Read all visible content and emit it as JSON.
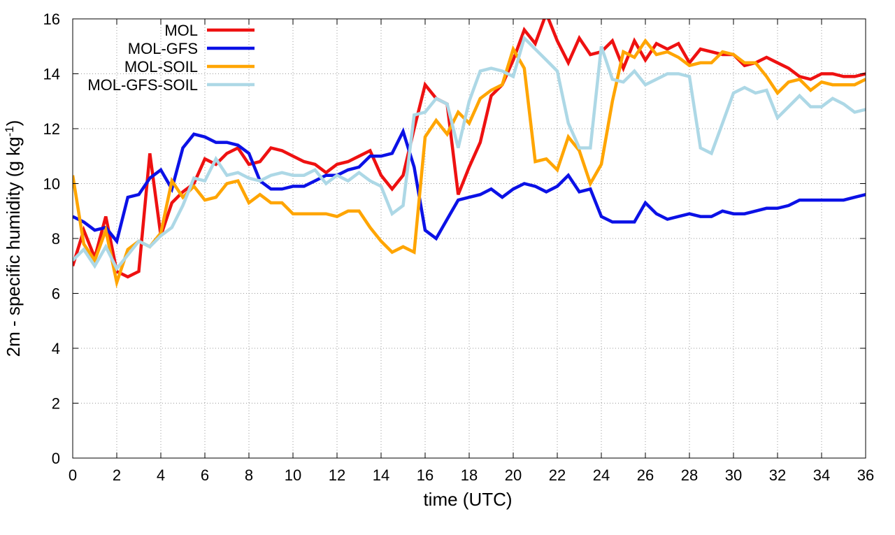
{
  "chart_data": {
    "type": "line",
    "xlabel": "time (UTC)",
    "ylabel": {
      "main": "2m - specific humidity (g kg",
      "sup": "-1",
      "close": ")"
    },
    "xlim": [
      0,
      36
    ],
    "ylim": [
      0,
      16
    ],
    "xticks": [
      0,
      2,
      4,
      6,
      8,
      10,
      12,
      14,
      16,
      18,
      20,
      22,
      24,
      26,
      28,
      30,
      32,
      34,
      36
    ],
    "yticks": [
      0,
      2,
      4,
      6,
      8,
      10,
      12,
      14,
      16
    ],
    "grid": true,
    "legend": "top-left",
    "x": [
      0,
      0.5,
      1,
      1.5,
      2,
      2.5,
      3,
      3.5,
      4,
      4.5,
      5,
      5.5,
      6,
      6.5,
      7,
      7.5,
      8,
      8.5,
      9,
      9.5,
      10,
      10.5,
      11,
      11.5,
      12,
      12.5,
      13,
      13.5,
      14,
      14.5,
      15,
      15.5,
      16,
      16.5,
      17,
      17.5,
      18,
      18.5,
      19,
      19.5,
      20,
      20.5,
      21,
      21.5,
      22,
      22.5,
      23,
      23.5,
      24,
      24.5,
      25,
      25.5,
      26,
      26.5,
      27,
      27.5,
      28,
      28.5,
      29,
      29.5,
      30,
      30.5,
      31,
      31.5,
      32,
      32.5,
      33,
      33.5,
      34,
      34.5,
      35,
      35.5,
      36
    ],
    "series": [
      {
        "name": "MOL",
        "color": "#ee1111",
        "values": [
          7.0,
          8.3,
          7.3,
          8.8,
          6.8,
          6.6,
          6.8,
          11.1,
          8.1,
          9.3,
          9.7,
          10.0,
          10.9,
          10.7,
          11.1,
          11.3,
          10.7,
          10.8,
          11.3,
          11.2,
          11.0,
          10.8,
          10.7,
          10.4,
          10.7,
          10.8,
          11.0,
          11.2,
          10.3,
          9.8,
          10.3,
          12.0,
          13.6,
          13.1,
          12.9,
          9.6,
          10.6,
          11.5,
          13.2,
          13.6,
          14.5,
          15.6,
          15.1,
          16.2,
          15.2,
          14.4,
          15.3,
          14.7,
          14.8,
          15.2,
          14.2,
          15.2,
          14.5,
          15.1,
          14.9,
          15.1,
          14.4,
          14.9,
          14.8,
          14.7,
          14.7,
          14.3,
          14.4,
          14.6,
          14.4,
          14.2,
          13.9,
          13.8,
          14.0,
          14.0,
          13.9,
          13.9,
          14.0
        ]
      },
      {
        "name": "MOL-GFS",
        "color": "#0b11e6",
        "values": [
          8.8,
          8.6,
          8.3,
          8.4,
          7.9,
          9.5,
          9.6,
          10.2,
          10.5,
          9.8,
          11.3,
          11.8,
          11.7,
          11.5,
          11.5,
          11.4,
          11.1,
          10.1,
          9.8,
          9.8,
          9.9,
          9.9,
          10.1,
          10.3,
          10.3,
          10.5,
          10.6,
          11.0,
          11.0,
          11.1,
          11.9,
          10.6,
          8.3,
          8.0,
          8.7,
          9.4,
          9.5,
          9.6,
          9.8,
          9.5,
          9.8,
          10.0,
          9.9,
          9.7,
          9.9,
          10.3,
          9.7,
          9.8,
          8.8,
          8.6,
          8.6,
          8.6,
          9.3,
          8.9,
          8.7,
          8.8,
          8.9,
          8.8,
          8.8,
          9.0,
          8.9,
          8.9,
          9.0,
          9.1,
          9.1,
          9.2,
          9.4,
          9.4,
          9.4,
          9.4,
          9.4,
          9.5,
          9.6
        ]
      },
      {
        "name": "MOL-SOIL",
        "color": "#ffa500",
        "values": [
          10.3,
          7.8,
          7.2,
          8.3,
          6.4,
          7.6,
          7.9,
          7.7,
          8.2,
          10.1,
          9.5,
          9.9,
          9.4,
          9.5,
          10.0,
          10.1,
          9.3,
          9.6,
          9.3,
          9.3,
          8.9,
          8.9,
          8.9,
          8.9,
          8.8,
          9.0,
          9.0,
          8.4,
          7.9,
          7.5,
          7.7,
          7.5,
          11.7,
          12.3,
          11.8,
          12.6,
          12.2,
          13.1,
          13.4,
          13.6,
          14.9,
          14.2,
          10.8,
          10.9,
          10.5,
          11.7,
          11.2,
          10.0,
          10.7,
          13.0,
          14.8,
          14.6,
          15.2,
          14.7,
          14.8,
          14.6,
          14.3,
          14.4,
          14.4,
          14.8,
          14.7,
          14.4,
          14.4,
          13.9,
          13.3,
          13.7,
          13.8,
          13.4,
          13.7,
          13.6,
          13.6,
          13.6,
          13.8
        ]
      },
      {
        "name": "MOL-GFS-SOIL",
        "color": "#add8e6",
        "values": [
          7.2,
          7.6,
          7.0,
          7.7,
          6.9,
          7.4,
          7.9,
          7.7,
          8.1,
          8.4,
          9.2,
          10.2,
          10.1,
          10.9,
          10.3,
          10.4,
          10.2,
          10.1,
          10.3,
          10.4,
          10.3,
          10.3,
          10.5,
          10.0,
          10.3,
          10.1,
          10.4,
          10.1,
          9.9,
          8.9,
          9.2,
          12.5,
          12.6,
          13.1,
          12.9,
          11.3,
          13.0,
          14.1,
          14.2,
          14.1,
          13.9,
          15.3,
          14.9,
          14.5,
          14.1,
          12.2,
          11.3,
          11.3,
          15.0,
          13.8,
          13.7,
          14.1,
          13.6,
          13.8,
          14.0,
          14.0,
          13.9,
          11.3,
          11.1,
          12.2,
          13.3,
          13.5,
          13.3,
          13.4,
          12.4,
          12.8,
          13.2,
          12.8,
          12.8,
          13.1,
          12.9,
          12.6,
          12.7
        ]
      }
    ]
  }
}
